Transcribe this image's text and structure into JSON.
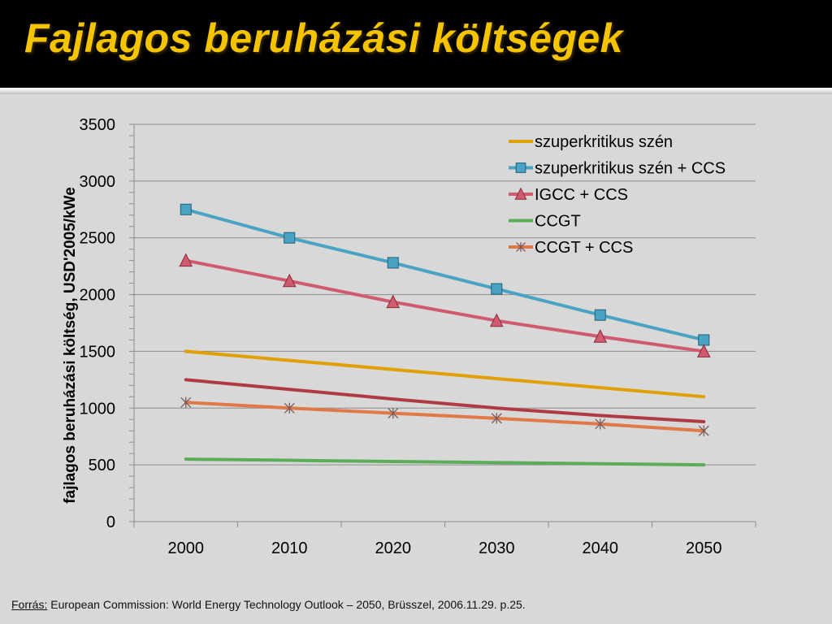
{
  "slide": {
    "title": "Fajlagos beruházási költségek",
    "title_color": "#f5c400",
    "header_bg": "#000000",
    "background": "#d8d8d8"
  },
  "source": {
    "label": "Forrás:",
    "text": "European Commission: World Energy Technology Outlook – 2050, Brüsszel, 2006.11.29. p.25."
  },
  "chart_data": {
    "type": "line",
    "title": "",
    "xlabel": "",
    "ylabel": "fajlagos beruházási költség, USD'2005/kWe",
    "x": [
      2000,
      2010,
      2020,
      2030,
      2040,
      2050
    ],
    "x_tick_labels": [
      "2000",
      "2010",
      "2020",
      "2030",
      "2040",
      "2050"
    ],
    "ylim": [
      0,
      3500
    ],
    "y_ticks": [
      0,
      500,
      1000,
      1500,
      2000,
      2500,
      3000,
      3500
    ],
    "y_tick_labels": [
      "0",
      "500",
      "1000",
      "1500",
      "2000",
      "2500",
      "3000",
      "3500"
    ],
    "grid": true,
    "legend_position": "top-right",
    "series": [
      {
        "name": "szuperkritikus szén",
        "color": "#e0a000",
        "marker": "none",
        "values": [
          1500,
          1420,
          1340,
          1260,
          1180,
          1100
        ]
      },
      {
        "name": "szuperkritikus szén + CCS",
        "color": "#4ba3c3",
        "marker": "square",
        "values": [
          2750,
          2500,
          2280,
          2050,
          1820,
          1600
        ]
      },
      {
        "name": "IGCC + CCS",
        "color": "#d05a6e",
        "marker": "triangle",
        "values": [
          2300,
          2120,
          1935,
          1770,
          1630,
          1500
        ]
      },
      {
        "name": "CCGT",
        "color": "#5cad5a",
        "marker": "none",
        "values": [
          550,
          540,
          530,
          520,
          510,
          500
        ]
      },
      {
        "name": "CCGT + CCS",
        "color": "#e07848",
        "marker": "star",
        "values": [
          1050,
          1000,
          955,
          910,
          860,
          800
        ]
      },
      {
        "color": "#b03a44",
        "marker": "none",
        "in_legend": false,
        "values": [
          1250,
          1165,
          1080,
          1000,
          935,
          880
        ]
      }
    ]
  }
}
